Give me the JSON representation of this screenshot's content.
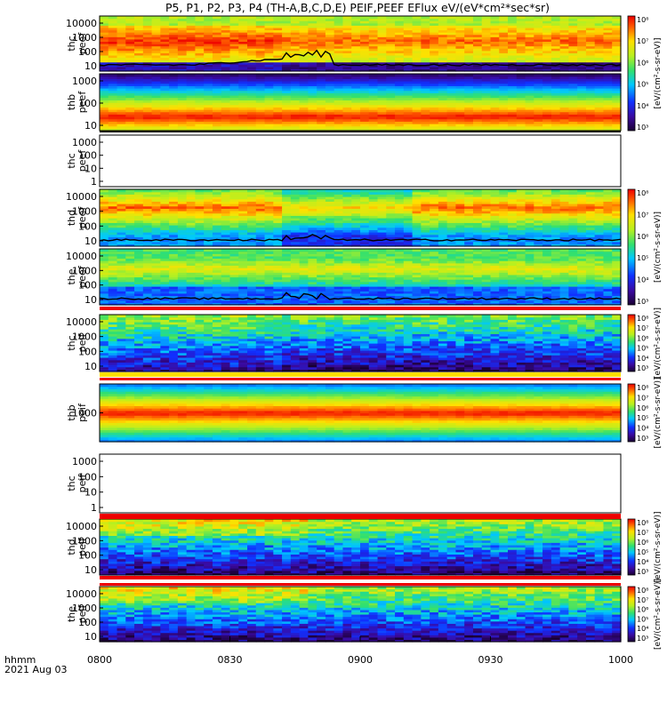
{
  "title": "P5, P1, P2, P3, P4 (TH-A,B,C,D,E) PEIF,PEEF EFlux eV/(eV*cm²*sec*sr)",
  "chart_data": {
    "type": "heatmap",
    "x_ticks": [
      "0800",
      "0830",
      "0900",
      "0930",
      "1000"
    ],
    "x_ticklabel_footer": [
      "hhmm",
      "2021 Aug 03"
    ],
    "colorbar_ticks": [
      "10³",
      "10⁴",
      "10⁵",
      "10⁶",
      "10⁷",
      "10⁸"
    ],
    "colorbar_label": "[eV/(cm²-s-sr-eV)]",
    "panels": [
      {
        "probe": "thc",
        "species": "peef",
        "y_ticks": [
          "10000",
          "1000",
          "100",
          "10"
        ],
        "empty": false,
        "profile": "c_e"
      },
      {
        "probe": "thb",
        "species": "peef",
        "y_ticks": [
          "1000",
          "100",
          "10"
        ],
        "empty": false,
        "profile": "b_e"
      },
      {
        "probe": "thc",
        "species": "peef",
        "y_ticks": [
          "1000",
          "100",
          "10",
          "1"
        ],
        "empty": true,
        "profile": "none"
      },
      {
        "probe": "thd",
        "species": "peef",
        "y_ticks": [
          "10000",
          "1000",
          "100",
          "10"
        ],
        "empty": false,
        "profile": "d_e"
      },
      {
        "probe": "the",
        "species": "peef",
        "y_ticks": [
          "10000",
          "1000",
          "100",
          "10"
        ],
        "empty": false,
        "profile": "e_e"
      },
      {
        "probe": "thc",
        "species": "peif",
        "y_ticks": [
          "10000",
          "1000",
          "100",
          "10"
        ],
        "empty": false,
        "profile": "c_i"
      },
      {
        "probe": "thb",
        "species": "peif",
        "y_ticks": [
          "1000"
        ],
        "empty": false,
        "profile": "b_i"
      },
      {
        "probe": "thc",
        "species": "peif",
        "y_ticks": [
          "1000",
          "100",
          "10",
          "1"
        ],
        "empty": true,
        "profile": "none"
      },
      {
        "probe": "thd",
        "species": "peif",
        "y_ticks": [
          "10000",
          "1000",
          "100",
          "10"
        ],
        "empty": false,
        "profile": "d_i"
      },
      {
        "probe": "the",
        "species": "peif",
        "y_ticks": [
          "10000",
          "1000",
          "100",
          "10"
        ],
        "empty": false,
        "profile": "e_i"
      }
    ]
  }
}
